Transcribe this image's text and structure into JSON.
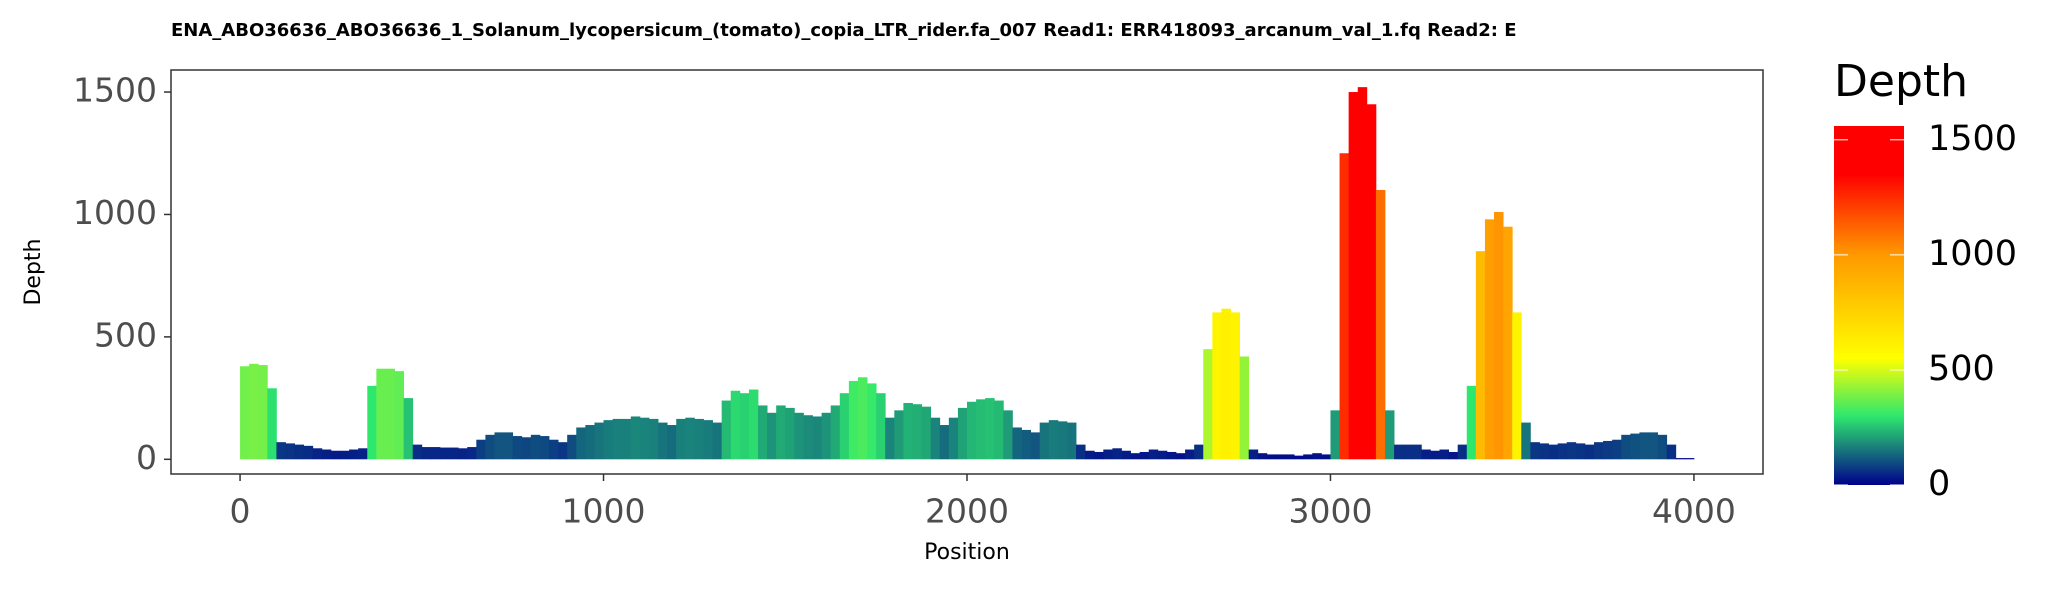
{
  "chart_data": {
    "type": "bar",
    "title": "ENA_ABO36636_ABO36636_1_Solanum_lycopersicum_(tomato)_copia_LTR_rider.fa_007   Read1: ERR418093_arcanum_val_1.fq   Read2: E",
    "x_label": "Position",
    "y_label": "Depth",
    "legend_title": "Depth",
    "bar_width": 25,
    "x": [
      0,
      25,
      50,
      75,
      100,
      125,
      150,
      175,
      200,
      225,
      250,
      275,
      300,
      325,
      350,
      375,
      400,
      425,
      450,
      475,
      500,
      525,
      550,
      575,
      600,
      625,
      650,
      675,
      700,
      725,
      750,
      775,
      800,
      825,
      850,
      875,
      900,
      925,
      950,
      975,
      1000,
      1025,
      1050,
      1075,
      1100,
      1125,
      1150,
      1175,
      1200,
      1225,
      1250,
      1275,
      1300,
      1325,
      1350,
      1375,
      1400,
      1425,
      1450,
      1475,
      1500,
      1525,
      1550,
      1575,
      1600,
      1625,
      1650,
      1675,
      1700,
      1725,
      1750,
      1775,
      1800,
      1825,
      1850,
      1875,
      1900,
      1925,
      1950,
      1975,
      2000,
      2025,
      2050,
      2075,
      2100,
      2125,
      2150,
      2175,
      2200,
      2225,
      2250,
      2275,
      2300,
      2325,
      2350,
      2375,
      2400,
      2425,
      2450,
      2475,
      2500,
      2525,
      2550,
      2575,
      2600,
      2625,
      2650,
      2675,
      2700,
      2725,
      2750,
      2775,
      2800,
      2825,
      2850,
      2875,
      2900,
      2925,
      2950,
      2975,
      3000,
      3025,
      3050,
      3075,
      3100,
      3125,
      3150,
      3175,
      3200,
      3225,
      3250,
      3275,
      3300,
      3325,
      3350,
      3375,
      3400,
      3425,
      3450,
      3475,
      3500,
      3525,
      3550,
      3575,
      3600,
      3625,
      3650,
      3675,
      3700,
      3725,
      3750,
      3775,
      3800,
      3825,
      3850,
      3875,
      3900,
      3925,
      3950,
      3975
    ],
    "values": [
      380,
      390,
      385,
      290,
      70,
      65,
      60,
      55,
      45,
      40,
      35,
      35,
      40,
      45,
      300,
      370,
      370,
      360,
      250,
      60,
      50,
      50,
      48,
      48,
      45,
      50,
      80,
      100,
      110,
      110,
      95,
      90,
      100,
      95,
      80,
      70,
      100,
      130,
      140,
      150,
      160,
      165,
      165,
      175,
      170,
      165,
      150,
      140,
      165,
      170,
      165,
      160,
      150,
      240,
      280,
      270,
      285,
      220,
      190,
      220,
      210,
      190,
      180,
      175,
      190,
      220,
      270,
      320,
      335,
      310,
      270,
      170,
      200,
      230,
      225,
      215,
      170,
      140,
      170,
      210,
      235,
      245,
      250,
      240,
      200,
      130,
      120,
      110,
      150,
      160,
      155,
      150,
      60,
      35,
      30,
      40,
      45,
      35,
      25,
      30,
      40,
      35,
      30,
      25,
      40,
      60,
      450,
      600,
      615,
      600,
      420,
      40,
      25,
      20,
      20,
      20,
      15,
      20,
      25,
      20,
      200,
      1250,
      1500,
      1520,
      1450,
      1100,
      200,
      60,
      60,
      60,
      40,
      35,
      40,
      30,
      60,
      300,
      850,
      980,
      1010,
      950,
      600,
      150,
      70,
      65,
      60,
      65,
      70,
      65,
      60,
      70,
      75,
      80,
      100,
      105,
      110,
      110,
      100,
      60,
      5,
      5
    ],
    "xlim": [
      -190,
      4190
    ],
    "xticks": [
      0,
      1000,
      2000,
      3000,
      4000
    ],
    "ylim": [
      -60,
      1590
    ],
    "yticks": [
      0,
      500,
      1000,
      1500
    ],
    "color_lim": [
      0,
      1560
    ],
    "color_ticks": [
      0,
      500,
      1000,
      1500
    ],
    "color_stops": [
      {
        "value": 0,
        "color": "#00008b"
      },
      {
        "value": 300,
        "color": "#2ee86e"
      },
      {
        "value": 550,
        "color": "#ffff00"
      },
      {
        "value": 1000,
        "color": "#ff9900"
      },
      {
        "value": 1350,
        "color": "#ff0000"
      }
    ],
    "grid": false
  }
}
